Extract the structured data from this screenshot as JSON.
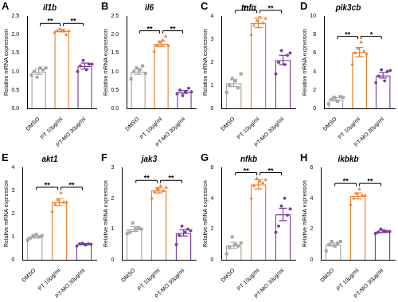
{
  "chart_data": [
    {
      "type": "bar",
      "panel": "A",
      "title": "il1b",
      "y_label": "Relative mRNA expression",
      "categories": [
        "DMSO",
        "PT 10μg/ml",
        "PT-MO 30μg/ml"
      ],
      "values": [
        1.0,
        2.1,
        1.15
      ],
      "errors": [
        0.07,
        0.03,
        0.08
      ],
      "colors": [
        "#a6a6a6",
        "#f07f2a",
        "#7b3f9e"
      ],
      "points": [
        {
          "marker": "square",
          "values": [
            0.9,
            1.0,
            0.85,
            1.1,
            1.05,
            1.1
          ]
        },
        {
          "marker": "triangle",
          "values": [
            2.05,
            2.1,
            2.15,
            2.1,
            2.0,
            2.1
          ]
        },
        {
          "marker": "circle",
          "values": [
            1.0,
            1.15,
            1.3,
            1.05,
            1.2,
            1.2
          ]
        }
      ],
      "comparisons": [
        {
          "from": "DMSO",
          "to": "PT 10μg/ml",
          "label": "**"
        },
        {
          "from": "PT 10μg/ml",
          "to": "PT-MO 30μg/ml",
          "label": "**"
        }
      ],
      "ylim": [
        0,
        2.5
      ],
      "yticks": [
        {
          "value": 0,
          "label": "0.0"
        },
        {
          "value": 0.5,
          "label": "0.5"
        },
        {
          "value": 1,
          "label": "1.0"
        },
        {
          "value": 1.5,
          "label": "1.5"
        },
        {
          "value": 2,
          "label": "2.0"
        },
        {
          "value": 2.5,
          "label": "2.5"
        }
      ],
      "grid": false
    },
    {
      "type": "bar",
      "panel": "B",
      "title": "il6",
      "y_label": "Relative mRNA expression",
      "categories": [
        "DMSO",
        "PT 10μg/ml",
        "PT-MO 30μg/ml"
      ],
      "values": [
        1.0,
        1.75,
        0.45
      ],
      "errors": [
        0.07,
        0.07,
        0.04
      ],
      "colors": [
        "#a6a6a6",
        "#f07f2a",
        "#7b3f9e"
      ],
      "points": [
        {
          "marker": "square",
          "values": [
            0.8,
            1.0,
            1.1,
            1.05,
            1.15,
            0.95
          ]
        },
        {
          "marker": "triangle",
          "values": [
            1.55,
            1.7,
            1.8,
            1.85,
            1.95,
            1.7
          ]
        },
        {
          "marker": "circle",
          "values": [
            0.4,
            0.5,
            0.35,
            0.45,
            0.55,
            0.45
          ]
        }
      ],
      "comparisons": [
        {
          "from": "DMSO",
          "to": "PT 10μg/ml",
          "label": "**"
        },
        {
          "from": "PT 10μg/ml",
          "to": "PT-MO 30μg/ml",
          "label": "**"
        }
      ],
      "ylim": [
        0,
        2.5
      ],
      "yticks": [
        {
          "value": 0,
          "label": "0.0"
        },
        {
          "value": 0.5,
          "label": "0.5"
        },
        {
          "value": 1,
          "label": "1.0"
        },
        {
          "value": 1.5,
          "label": "1.5"
        },
        {
          "value": 2,
          "label": "2.0"
        },
        {
          "value": 2.5,
          "label": "2.5"
        }
      ],
      "grid": false
    },
    {
      "type": "bar",
      "panel": "C",
      "title": "tnfα",
      "y_label": "Relative mRNA expression",
      "categories": [
        "DMSO",
        "PT 10μg/ml",
        "PT-MO 30μg/ml"
      ],
      "values": [
        1.1,
        3.7,
        2.1
      ],
      "errors": [
        0.15,
        0.2,
        0.2
      ],
      "colors": [
        "#a6a6a6",
        "#f07f2a",
        "#7b3f9e"
      ],
      "points": [
        {
          "marker": "square",
          "values": [
            0.7,
            1.0,
            1.3,
            1.2,
            0.9,
            1.5
          ]
        },
        {
          "marker": "triangle",
          "values": [
            3.2,
            3.6,
            3.8,
            4.0,
            3.7,
            3.9
          ]
        },
        {
          "marker": "circle",
          "values": [
            1.5,
            2.0,
            2.5,
            1.9,
            2.3,
            2.4
          ]
        }
      ],
      "comparisons": [
        {
          "from": "DMSO",
          "to": "PT 10μg/ml",
          "label": "**"
        },
        {
          "from": "PT 10μg/ml",
          "to": "PT-MO 30μg/ml",
          "label": "**"
        }
      ],
      "ylim": [
        0,
        4
      ],
      "yticks": [
        0,
        1,
        2,
        3,
        4
      ],
      "grid": false
    },
    {
      "type": "bar",
      "panel": "D",
      "title": "pik3cb",
      "y_label": "Relative mRNA expression",
      "categories": [
        "DMSO",
        "PT 10μg/ml",
        "PT-MO 30μg/ml"
      ],
      "values": [
        1.0,
        6.1,
        3.6
      ],
      "errors": [
        0.2,
        0.5,
        0.3
      ],
      "colors": [
        "#a6a6a6",
        "#f07f2a",
        "#7b3f9e"
      ],
      "points": [
        {
          "marker": "square",
          "values": [
            0.5,
            1.0,
            1.2,
            0.8,
            1.3,
            1.2
          ]
        },
        {
          "marker": "triangle",
          "values": [
            4.8,
            6.0,
            6.5,
            7.2,
            6.2,
            5.9
          ]
        },
        {
          "marker": "circle",
          "values": [
            2.8,
            3.5,
            4.2,
            3.0,
            4.0,
            4.1
          ]
        }
      ],
      "comparisons": [
        {
          "from": "DMSO",
          "to": "PT 10μg/ml",
          "label": "**"
        },
        {
          "from": "PT 10μg/ml",
          "to": "PT-MO 30μg/ml",
          "label": "*"
        }
      ],
      "ylim": [
        0,
        10
      ],
      "yticks": [
        0,
        2,
        4,
        6,
        8,
        10
      ],
      "grid": false
    },
    {
      "type": "bar",
      "panel": "E",
      "title": "akt1",
      "y_label": "Relative mRNA expression",
      "categories": [
        "DMSO",
        "PT 10μg/ml",
        "PT-MO 30μg/ml"
      ],
      "values": [
        1.0,
        2.5,
        0.68
      ],
      "errors": [
        0.05,
        0.15,
        0.03
      ],
      "colors": [
        "#a6a6a6",
        "#f07f2a",
        "#7b3f9e"
      ],
      "points": [
        {
          "marker": "square",
          "values": [
            0.85,
            0.95,
            1.05,
            1.1,
            1.0,
            1.05
          ]
        },
        {
          "marker": "triangle",
          "values": [
            2.1,
            2.4,
            2.6,
            2.9,
            2.5,
            2.5
          ]
        },
        {
          "marker": "circle",
          "values": [
            0.6,
            0.7,
            0.72,
            0.65,
            0.7,
            0.68
          ]
        }
      ],
      "comparisons": [
        {
          "from": "DMSO",
          "to": "PT 10μg/ml",
          "label": "**"
        },
        {
          "from": "PT 10μg/ml",
          "to": "PT-MO 30μg/ml",
          "label": "**"
        }
      ],
      "ylim": [
        0,
        4
      ],
      "yticks": [
        0,
        1,
        2,
        3,
        4
      ],
      "grid": false
    },
    {
      "type": "bar",
      "panel": "F",
      "title": "jak3",
      "y_label": "Relative mRNA expression",
      "categories": [
        "DMSO",
        "PT 10μg/ml",
        "PT-MO 30μg/ml"
      ],
      "values": [
        1.0,
        2.25,
        0.88
      ],
      "errors": [
        0.08,
        0.08,
        0.1
      ],
      "colors": [
        "#a6a6a6",
        "#f07f2a",
        "#7b3f9e"
      ],
      "points": [
        {
          "marker": "square",
          "values": [
            0.85,
            0.9,
            1.2,
            1.0,
            1.05,
            1.0
          ]
        },
        {
          "marker": "triangle",
          "values": [
            2.0,
            2.2,
            2.3,
            2.4,
            2.25,
            2.35
          ]
        },
        {
          "marker": "circle",
          "values": [
            0.5,
            0.8,
            1.1,
            0.9,
            1.0,
            0.95
          ]
        }
      ],
      "comparisons": [
        {
          "from": "DMSO",
          "to": "PT 10μg/ml",
          "label": "**"
        },
        {
          "from": "PT 10μg/ml",
          "to": "PT-MO 30μg/ml",
          "label": "**"
        }
      ],
      "ylim": [
        0,
        3
      ],
      "yticks": [
        0,
        1,
        2,
        3
      ],
      "grid": false
    },
    {
      "type": "bar",
      "panel": "G",
      "title": "nfkb",
      "y_label": "Relative mRNA expression",
      "categories": [
        "DMSO",
        "PT 10μg/ml",
        "PT-MO 30μg/ml"
      ],
      "values": [
        0.95,
        4.9,
        2.95
      ],
      "errors": [
        0.2,
        0.3,
        0.4
      ],
      "colors": [
        "#a6a6a6",
        "#f07f2a",
        "#7b3f9e"
      ],
      "points": [
        {
          "marker": "square",
          "values": [
            0.4,
            0.8,
            1.5,
            1.0,
            0.9,
            1.1
          ]
        },
        {
          "marker": "triangle",
          "values": [
            4.0,
            4.8,
            5.3,
            5.1,
            5.0,
            5.2
          ]
        },
        {
          "marker": "circle",
          "values": [
            1.8,
            2.2,
            3.5,
            4.0,
            2.9,
            3.3
          ]
        }
      ],
      "comparisons": [
        {
          "from": "DMSO",
          "to": "PT 10μg/ml",
          "label": "**"
        },
        {
          "from": "PT 10μg/ml",
          "to": "PT-MO 30μg/ml",
          "label": "**"
        }
      ],
      "ylim": [
        0,
        6
      ],
      "yticks": [
        0,
        2,
        4,
        6
      ],
      "grid": false
    },
    {
      "type": "bar",
      "panel": "H",
      "title": "ikbkb",
      "y_label": "Relative mRNA expression",
      "categories": [
        "DMSO",
        "PT 10μg/ml",
        "PT-MO 30μg/ml"
      ],
      "values": [
        1.0,
        4.15,
        1.85
      ],
      "errors": [
        0.1,
        0.2,
        0.07
      ],
      "colors": [
        "#a6a6a6",
        "#f07f2a",
        "#7b3f9e"
      ],
      "points": [
        {
          "marker": "square",
          "values": [
            0.6,
            1.0,
            1.2,
            0.9,
            1.1,
            1.2
          ]
        },
        {
          "marker": "triangle",
          "values": [
            3.6,
            4.0,
            4.3,
            4.6,
            4.2,
            4.2
          ]
        },
        {
          "marker": "circle",
          "values": [
            1.7,
            1.8,
            2.0,
            1.9,
            1.85,
            1.85
          ]
        }
      ],
      "comparisons": [
        {
          "from": "DMSO",
          "to": "PT 10μg/ml",
          "label": "**"
        },
        {
          "from": "PT 10μg/ml",
          "to": "PT-MO 30μg/ml",
          "label": "**"
        }
      ],
      "ylim": [
        0,
        6
      ],
      "yticks": [
        0,
        2,
        4,
        6
      ],
      "grid": false
    }
  ]
}
